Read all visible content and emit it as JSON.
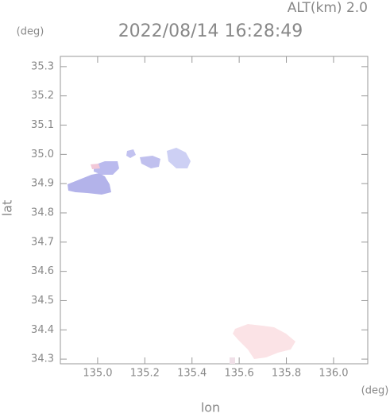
{
  "chart_data": {
    "type": "map",
    "title": "2022/08/14 16:28:49",
    "subtitle": "ALT(km) 2.0",
    "x_label": "lon",
    "x_unit": "(deg)",
    "y_label": "lat",
    "y_unit": "(deg)",
    "xlim": [
      134.842,
      136.145
    ],
    "ylim": [
      34.284,
      35.335
    ],
    "xticks": [
      {
        "value": 135,
        "label": "135.0"
      },
      135.2,
      135.4,
      135.6,
      135.8,
      {
        "value": 136,
        "label": "136.0"
      }
    ],
    "yticks": [
      34.3,
      34.4,
      34.5,
      34.6,
      34.7,
      34.8,
      34.9,
      {
        "value": 35,
        "label": "35.0"
      },
      35.1,
      35.2,
      35.3
    ]
  }
}
